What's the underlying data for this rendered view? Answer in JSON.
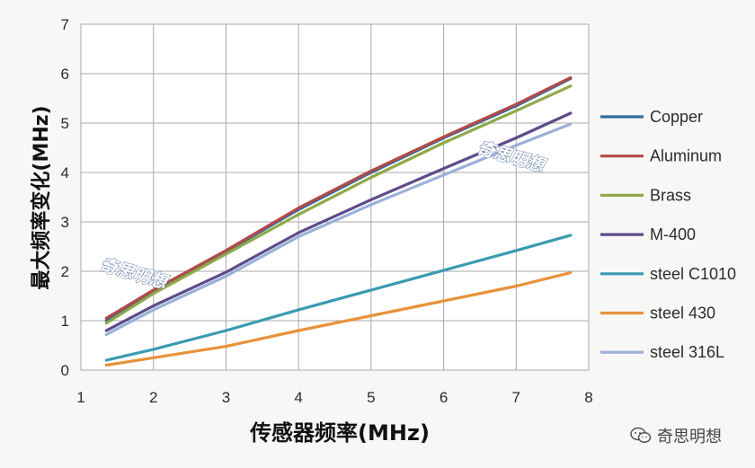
{
  "chart_data": {
    "type": "line",
    "xlabel": "传感器频率(MHz)",
    "ylabel": "最大频率变化(MHz)",
    "xlim": [
      1,
      8
    ],
    "ylim": [
      0,
      7
    ],
    "xticks": [
      "1",
      "2",
      "3",
      "4",
      "5",
      "6",
      "7",
      "8"
    ],
    "yticks": [
      "0",
      "1",
      "2",
      "3",
      "4",
      "5",
      "6",
      "7"
    ],
    "grid": true,
    "legend_position": "right",
    "series": [
      {
        "name": "Copper",
        "color": "#2f6d9e",
        "x": [
          1.35,
          2,
          3,
          4,
          5,
          6,
          7,
          7.75
        ],
        "y": [
          1.0,
          1.6,
          2.4,
          3.25,
          4.0,
          4.7,
          5.35,
          5.9
        ]
      },
      {
        "name": "Aluminum",
        "color": "#b34a48",
        "x": [
          1.35,
          2,
          3,
          4,
          5,
          6,
          7,
          7.75
        ],
        "y": [
          1.05,
          1.62,
          2.42,
          3.28,
          4.03,
          4.72,
          5.38,
          5.92
        ]
      },
      {
        "name": "Brass",
        "color": "#8fa94a",
        "x": [
          1.35,
          2,
          3,
          4,
          5,
          6,
          7,
          7.75
        ],
        "y": [
          0.95,
          1.55,
          2.35,
          3.15,
          3.9,
          4.6,
          5.25,
          5.75
        ]
      },
      {
        "name": "M-400",
        "color": "#5f4b8b",
        "x": [
          1.35,
          2,
          3,
          4,
          5,
          6,
          7,
          7.75
        ],
        "y": [
          0.8,
          1.3,
          1.98,
          2.78,
          3.45,
          4.08,
          4.7,
          5.2
        ]
      },
      {
        "name": "steel C1010",
        "color": "#3a9bb0",
        "x": [
          1.35,
          2,
          3,
          4,
          5,
          6,
          7,
          7.75
        ],
        "y": [
          0.2,
          0.42,
          0.8,
          1.22,
          1.62,
          2.02,
          2.42,
          2.73
        ]
      },
      {
        "name": "steel 430",
        "color": "#e8923a",
        "x": [
          1.35,
          2,
          3,
          4,
          5,
          6,
          7,
          7.75
        ],
        "y": [
          0.1,
          0.25,
          0.48,
          0.8,
          1.1,
          1.4,
          1.7,
          1.97
        ]
      },
      {
        "name": "steel 316L",
        "color": "#9bb0d8",
        "x": [
          1.35,
          2,
          3,
          4,
          5,
          6,
          7,
          7.75
        ],
        "y": [
          0.72,
          1.22,
          1.9,
          2.7,
          3.35,
          3.95,
          4.55,
          4.98
        ]
      }
    ],
    "watermarks": [
      "奇思明想",
      "奇思明想"
    ]
  },
  "footer_watermark": {
    "text": "奇思明想",
    "icon": "wechat-icon"
  }
}
